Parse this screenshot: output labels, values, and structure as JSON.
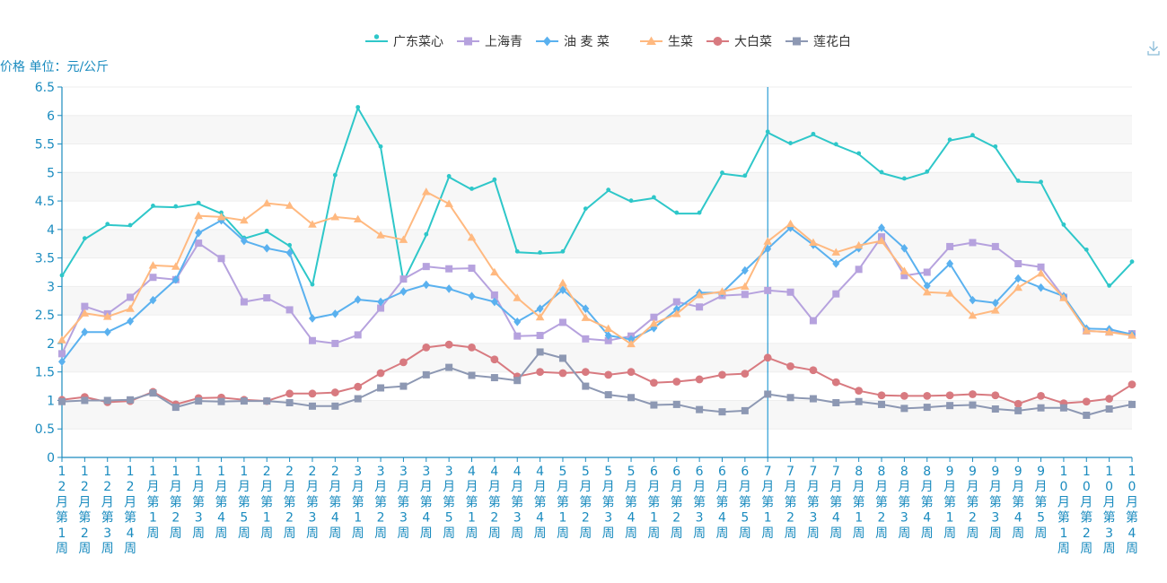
{
  "chart_data": {
    "type": "line",
    "title": "",
    "ylabel": "价格 单位：元/公斤",
    "xlabel": "",
    "ylim": [
      0,
      6.5
    ],
    "yticks": [
      0,
      0.5,
      1,
      1.5,
      2,
      2.5,
      3,
      3.5,
      4,
      4.5,
      5,
      5.5,
      6,
      6.5
    ],
    "ytick_labels": [
      "0",
      "0.5",
      "1",
      "1.5",
      "2",
      "2.5",
      "3",
      "3.5",
      "4",
      "4.5",
      "5",
      "5.5",
      "6",
      "6.5"
    ],
    "legend_position": "top-center",
    "categories": [
      "12月第1周",
      "12月第2周",
      "12月第3周",
      "12月第4周",
      "1月第1周",
      "1月第2周",
      "1月第3周",
      "1月第4周",
      "1月第5周",
      "2月第1周",
      "2月第2周",
      "2月第3周",
      "2月第4周",
      "3月第1周",
      "3月第2周",
      "3月第3周",
      "3月第4周",
      "3月第5周",
      "4月第1周",
      "4月第2周",
      "4月第3周",
      "4月第4周",
      "5月第1周",
      "5月第2周",
      "5月第3周",
      "5月第4周",
      "6月第1周",
      "6月第2周",
      "6月第3周",
      "6月第4周",
      "6月第5周",
      "7月第1周",
      "7月第2周",
      "7月第3周",
      "7月第4周",
      "8月第1周",
      "8月第2周",
      "8月第3周",
      "8月第4周",
      "9月第1周",
      "9月第2周",
      "9月第3周",
      "9月第4周",
      "9月第5周",
      "10月第1周",
      "10月第2周",
      "10月第3周",
      "10月第4周"
    ],
    "highlight_category": "7月第1周",
    "series": [
      {
        "name": "广东菜心",
        "color": "#2ec7c9",
        "symbol": "pin",
        "values": [
          3.18,
          3.83,
          4.08,
          4.06,
          4.4,
          4.39,
          4.45,
          4.28,
          3.84,
          3.96,
          3.71,
          3.02,
          4.94,
          6.13,
          5.44,
          3.09,
          3.9,
          4.92,
          4.7,
          4.86,
          3.6,
          3.58,
          3.6,
          4.35,
          4.68,
          4.49,
          4.55,
          4.28,
          4.28,
          4.98,
          4.93,
          5.7,
          5.5,
          5.66,
          5.48,
          5.32,
          4.99,
          4.88,
          5.0,
          5.56,
          5.64,
          5.44,
          4.84,
          4.82,
          4.07,
          3.63,
          3.0,
          3.42
        ]
      },
      {
        "name": "上海青",
        "color": "#b6a2de",
        "symbol": "rect",
        "values": [
          1.82,
          2.65,
          2.52,
          2.81,
          3.16,
          3.12,
          3.76,
          3.49,
          2.73,
          2.8,
          2.59,
          2.05,
          2.0,
          2.15,
          2.62,
          3.13,
          3.35,
          3.31,
          3.32,
          2.85,
          2.13,
          2.14,
          2.37,
          2.08,
          2.05,
          2.13,
          2.46,
          2.73,
          2.64,
          2.84,
          2.86,
          2.93,
          2.9,
          2.4,
          2.87,
          3.3,
          3.87,
          3.19,
          3.25,
          3.7,
          3.77,
          3.7,
          3.4,
          3.34,
          2.81,
          2.22,
          2.2,
          2.17
        ]
      },
      {
        "name": "油 麦 菜",
        "color": "#5ab1ef",
        "symbol": "diamond",
        "values": [
          1.68,
          2.2,
          2.2,
          2.39,
          2.76,
          3.12,
          3.94,
          4.16,
          3.8,
          3.67,
          3.59,
          2.44,
          2.52,
          2.77,
          2.73,
          2.91,
          3.03,
          2.96,
          2.83,
          2.73,
          2.38,
          2.61,
          2.94,
          2.61,
          2.14,
          2.07,
          2.27,
          2.6,
          2.89,
          2.89,
          3.28,
          3.66,
          4.03,
          3.73,
          3.4,
          3.67,
          4.03,
          3.67,
          3.01,
          3.4,
          2.76,
          2.71,
          3.14,
          2.98,
          2.83,
          2.26,
          2.25,
          2.16
        ]
      },
      {
        "name": "生菜",
        "color": "#ffb980",
        "symbol": "triangle",
        "values": [
          2.06,
          2.53,
          2.47,
          2.61,
          3.37,
          3.35,
          4.24,
          4.22,
          4.16,
          4.46,
          4.42,
          4.09,
          4.22,
          4.18,
          3.9,
          3.82,
          4.66,
          4.45,
          3.86,
          3.25,
          2.8,
          2.46,
          3.06,
          2.45,
          2.26,
          1.99,
          2.35,
          2.52,
          2.85,
          2.91,
          3.0,
          3.79,
          4.1,
          3.77,
          3.6,
          3.72,
          3.8,
          3.27,
          2.9,
          2.88,
          2.49,
          2.58,
          2.98,
          3.23,
          2.8,
          2.22,
          2.2,
          2.14
        ]
      },
      {
        "name": "大白菜",
        "color": "#d87a80",
        "symbol": "circle",
        "values": [
          1.01,
          1.06,
          0.97,
          0.99,
          1.15,
          0.93,
          1.04,
          1.05,
          1.01,
          0.99,
          1.12,
          1.12,
          1.14,
          1.24,
          1.48,
          1.67,
          1.93,
          1.98,
          1.93,
          1.72,
          1.42,
          1.5,
          1.48,
          1.5,
          1.45,
          1.5,
          1.31,
          1.33,
          1.37,
          1.45,
          1.47,
          1.75,
          1.6,
          1.53,
          1.32,
          1.17,
          1.09,
          1.08,
          1.08,
          1.09,
          1.11,
          1.09,
          0.94,
          1.08,
          0.95,
          0.98,
          1.03,
          1.28
        ]
      },
      {
        "name": "莲花白",
        "color": "#8d98b3",
        "symbol": "rect",
        "values": [
          0.98,
          1.0,
          1.0,
          1.01,
          1.13,
          0.88,
          0.99,
          0.98,
          0.99,
          0.99,
          0.96,
          0.9,
          0.9,
          1.03,
          1.22,
          1.25,
          1.45,
          1.58,
          1.44,
          1.4,
          1.35,
          1.85,
          1.74,
          1.25,
          1.1,
          1.05,
          0.92,
          0.93,
          0.84,
          0.8,
          0.82,
          1.11,
          1.05,
          1.03,
          0.96,
          0.98,
          0.93,
          0.86,
          0.88,
          0.91,
          0.92,
          0.85,
          0.82,
          0.87,
          0.87,
          0.74,
          0.85,
          0.93
        ]
      }
    ]
  },
  "toolbox": {
    "download_icon": "download-icon"
  }
}
